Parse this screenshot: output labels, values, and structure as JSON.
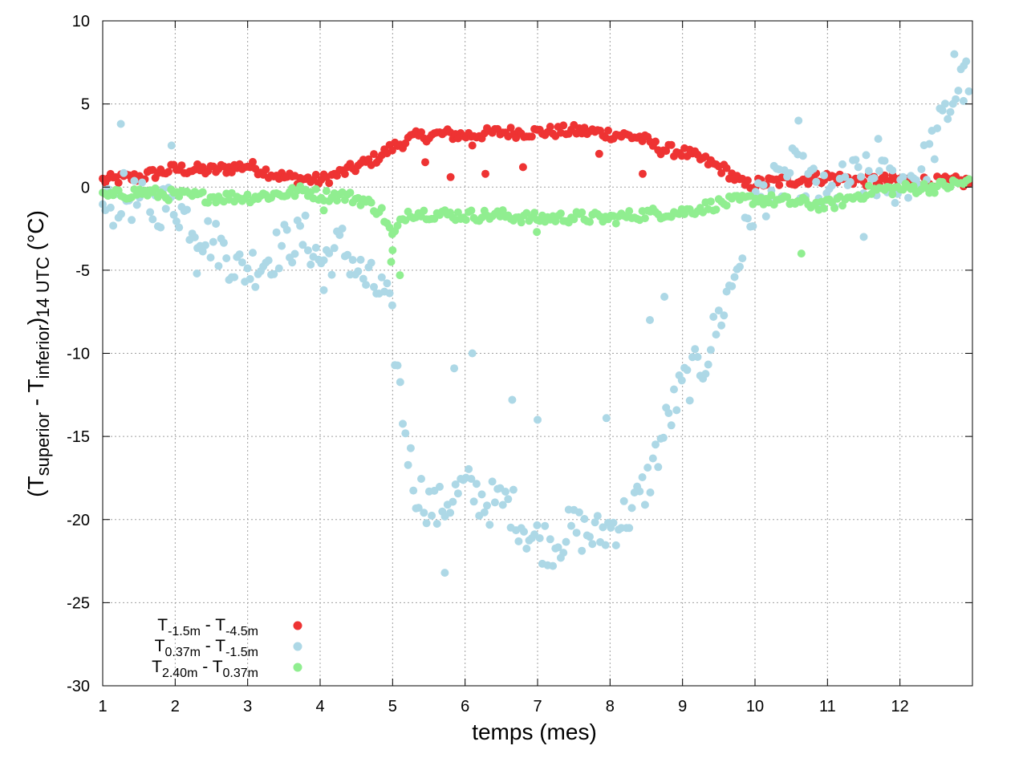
{
  "chart_data": {
    "type": "scatter",
    "xlabel": "temps (mes)",
    "ylabel": {
      "open": "(T",
      "sub1": "superior",
      "mid": " - T",
      "sub2": "inferior",
      "close": ")",
      "sub3": "14 UTC",
      "unit": " (°C)"
    },
    "xlim": [
      1,
      13
    ],
    "ylim": [
      -30,
      10
    ],
    "xticks": [
      1,
      2,
      3,
      4,
      5,
      6,
      7,
      8,
      9,
      10,
      11,
      12
    ],
    "yticks": [
      -30,
      -25,
      -20,
      -15,
      -10,
      -5,
      0,
      5,
      10
    ],
    "grid": true,
    "legend_position": "bottom-left",
    "series": [
      {
        "name": "T-1.5m - T-4.5m",
        "legend": {
          "a": "T",
          "a_sub": "-1.5m",
          "mid": " - T",
          "b_sub": "-4.5m"
        },
        "color": "#ee3333",
        "anchors": [
          [
            1.0,
            0.4
          ],
          [
            1.5,
            0.6
          ],
          [
            2.0,
            1.1
          ],
          [
            2.5,
            1.0
          ],
          [
            3.0,
            1.3
          ],
          [
            3.5,
            0.6
          ],
          [
            4.0,
            0.4
          ],
          [
            4.2,
            0.7
          ],
          [
            4.5,
            1.2
          ],
          [
            4.8,
            1.8
          ],
          [
            5.0,
            2.4
          ],
          [
            5.3,
            3.0
          ],
          [
            5.7,
            3.2
          ],
          [
            6.0,
            3.1
          ],
          [
            6.5,
            3.3
          ],
          [
            7.0,
            3.3
          ],
          [
            7.5,
            3.4
          ],
          [
            7.8,
            3.3
          ],
          [
            8.0,
            3.2
          ],
          [
            8.4,
            3.0
          ],
          [
            8.7,
            2.3
          ],
          [
            9.0,
            2.1
          ],
          [
            9.3,
            1.6
          ],
          [
            9.6,
            1.0
          ],
          [
            9.85,
            0.1
          ],
          [
            10.0,
            0.2
          ],
          [
            10.5,
            0.4
          ],
          [
            11.0,
            0.6
          ],
          [
            11.5,
            0.4
          ],
          [
            12.0,
            0.4
          ],
          [
            12.5,
            0.3
          ],
          [
            12.95,
            0.3
          ]
        ],
        "noise": 0.35,
        "outliers": [
          [
            5.45,
            1.5
          ],
          [
            5.8,
            0.6
          ],
          [
            6.28,
            0.8
          ],
          [
            6.8,
            1.2
          ],
          [
            7.85,
            2.0
          ],
          [
            8.45,
            0.8
          ],
          [
            9.7,
            0.5
          ],
          [
            6.1,
            2.5
          ]
        ]
      },
      {
        "name": "T0.37m - T-1.5m",
        "legend": {
          "a": "T",
          "a_sub": "0.37m",
          "mid": " - T",
          "b_sub": "-1.5m"
        },
        "color": "#add8e6",
        "anchors": [
          [
            1.0,
            -1.5
          ],
          [
            1.3,
            -0.5
          ],
          [
            1.6,
            -1.2
          ],
          [
            2.0,
            -1.0
          ],
          [
            2.3,
            -2.5
          ],
          [
            2.6,
            -3.5
          ],
          [
            2.9,
            -5.0
          ],
          [
            3.2,
            -4.5
          ],
          [
            3.5,
            -3.5
          ],
          [
            3.8,
            -3.0
          ],
          [
            4.0,
            -4.5
          ],
          [
            4.3,
            -3.5
          ],
          [
            4.6,
            -5.5
          ],
          [
            4.9,
            -6.5
          ],
          [
            5.0,
            -8.5
          ],
          [
            5.15,
            -14.0
          ],
          [
            5.3,
            -18.0
          ],
          [
            5.6,
            -19.5
          ],
          [
            6.0,
            -18.0
          ],
          [
            6.3,
            -19.0
          ],
          [
            6.6,
            -19.0
          ],
          [
            6.9,
            -21.0
          ],
          [
            7.2,
            -21.5
          ],
          [
            7.5,
            -20.5
          ],
          [
            7.8,
            -21.0
          ],
          [
            8.0,
            -20.5
          ],
          [
            8.3,
            -19.5
          ],
          [
            8.5,
            -18.0
          ],
          [
            8.8,
            -14.0
          ],
          [
            9.0,
            -12.0
          ],
          [
            9.3,
            -10.5
          ],
          [
            9.5,
            -8.0
          ],
          [
            9.7,
            -5.5
          ],
          [
            9.9,
            -2.5
          ],
          [
            10.0,
            -0.8
          ],
          [
            10.3,
            0.0
          ],
          [
            10.5,
            1.0
          ],
          [
            10.7,
            0.5
          ],
          [
            11.0,
            -0.8
          ],
          [
            11.3,
            0.5
          ],
          [
            11.6,
            0.6
          ],
          [
            12.0,
            0.2
          ],
          [
            12.3,
            1.0
          ],
          [
            12.6,
            4.0
          ],
          [
            12.8,
            6.0
          ],
          [
            12.95,
            6.5
          ]
        ],
        "noise": 1.4,
        "outliers": [
          [
            1.25,
            3.8
          ],
          [
            1.95,
            2.5
          ],
          [
            12.75,
            8.0
          ],
          [
            12.88,
            7.3
          ],
          [
            6.1,
            -10.0
          ],
          [
            5.85,
            -10.9
          ],
          [
            6.65,
            -12.8
          ],
          [
            7.0,
            -14.0
          ],
          [
            7.95,
            -13.9
          ],
          [
            5.72,
            -23.2
          ],
          [
            8.55,
            -8.0
          ],
          [
            8.75,
            -6.6
          ],
          [
            11.5,
            -3.0
          ],
          [
            11.7,
            2.9
          ],
          [
            10.6,
            4.0
          ],
          [
            2.3,
            -5.2
          ],
          [
            4.05,
            -6.2
          ]
        ]
      },
      {
        "name": "T2.40m - T0.37m",
        "legend": {
          "a": "T",
          "a_sub": "2.40m",
          "mid": " - T",
          "b_sub": "0.37m"
        },
        "color": "#90ee90",
        "anchors": [
          [
            1.0,
            -0.6
          ],
          [
            1.5,
            -0.3
          ],
          [
            2.0,
            -0.5
          ],
          [
            2.5,
            -0.6
          ],
          [
            3.0,
            -0.6
          ],
          [
            3.5,
            -0.4
          ],
          [
            3.8,
            -0.2
          ],
          [
            4.0,
            -0.5
          ],
          [
            4.3,
            -0.5
          ],
          [
            4.6,
            -0.8
          ],
          [
            4.85,
            -1.5
          ],
          [
            5.0,
            -3.0
          ],
          [
            5.2,
            -1.5
          ],
          [
            5.5,
            -1.6
          ],
          [
            6.0,
            -1.7
          ],
          [
            6.5,
            -1.7
          ],
          [
            7.0,
            -1.9
          ],
          [
            7.5,
            -1.8
          ],
          [
            8.0,
            -1.9
          ],
          [
            8.5,
            -1.6
          ],
          [
            9.0,
            -1.5
          ],
          [
            9.5,
            -1.0
          ],
          [
            10.0,
            -0.7
          ],
          [
            10.5,
            -0.9
          ],
          [
            11.0,
            -1.1
          ],
          [
            11.3,
            -0.7
          ],
          [
            11.6,
            -0.2
          ],
          [
            12.0,
            -0.1
          ],
          [
            12.5,
            0.0
          ],
          [
            12.95,
            0.3
          ]
        ],
        "noise": 0.35,
        "outliers": [
          [
            4.98,
            -4.5
          ],
          [
            5.1,
            -5.3
          ],
          [
            5.0,
            -3.8
          ],
          [
            6.99,
            -2.7
          ],
          [
            10.64,
            -4.0
          ],
          [
            4.05,
            -1.4
          ]
        ]
      }
    ]
  }
}
